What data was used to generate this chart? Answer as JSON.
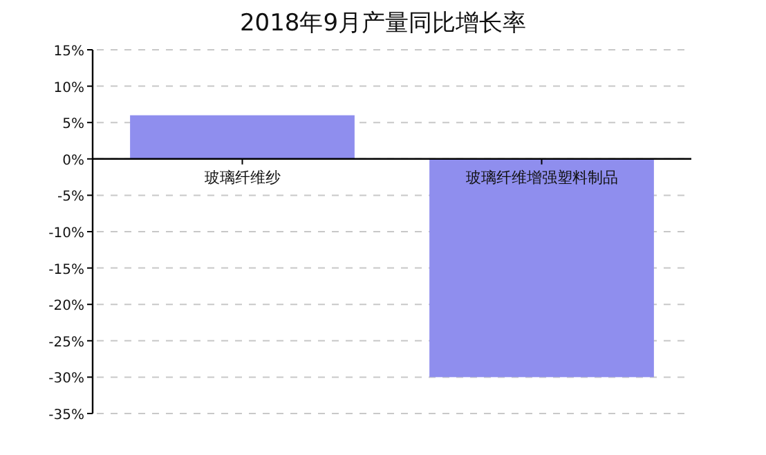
{
  "chart_data": {
    "type": "bar",
    "title": "2018年9月产量同比增长率",
    "categories": [
      "玻璃纤维纱",
      "玻璃纤维增强塑料制品"
    ],
    "values": [
      6,
      -30
    ],
    "color": "#8f8eee",
    "grid": "y",
    "ylim": [
      -35,
      15
    ],
    "yticks": [
      {
        "value": 15,
        "label": "15%"
      },
      {
        "value": 10,
        "label": "10%"
      },
      {
        "value": 5,
        "label": "5%"
      },
      {
        "value": 0,
        "label": "0%"
      },
      {
        "value": -5,
        "label": "-5%"
      },
      {
        "value": -10,
        "label": "-10%"
      },
      {
        "value": -15,
        "label": "-15%"
      },
      {
        "value": -20,
        "label": "-20%"
      },
      {
        "value": -25,
        "label": "-25%"
      },
      {
        "value": -30,
        "label": "-30%"
      },
      {
        "value": -35,
        "label": "-35%"
      }
    ]
  }
}
